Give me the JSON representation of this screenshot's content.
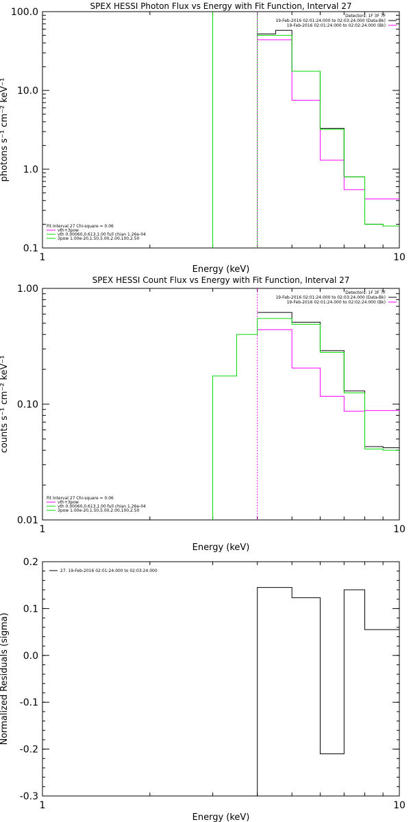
{
  "colors": {
    "background": "#ffffff",
    "axes": "#000000",
    "data": "#000000",
    "total": "#ff00ff",
    "thermal": "#00dd00",
    "time_marker": "#ff00ff"
  },
  "chart_data": [
    {
      "type": "line",
      "title": "SPEX HESSI Photon Flux vs Energy with Fit Function, Interval 27",
      "xlabel": "Energy (keV)",
      "ylabel": "photons s⁻¹ cm⁻² keV⁻¹",
      "xscale": "log",
      "yscale": "log",
      "xlim": [
        1,
        10
      ],
      "ylim": [
        0.1,
        100
      ],
      "xticks": [
        {
          "value": 1,
          "label": "1"
        },
        {
          "value": 10,
          "label": "10"
        }
      ],
      "yticks": [
        {
          "value": 0.1,
          "label": "0.1"
        },
        {
          "value": 1,
          "label": "1.0"
        },
        {
          "value": 10,
          "label": "10.0"
        },
        {
          "value": 100,
          "label": "100.0"
        }
      ],
      "grid": false,
      "legend_upper": [
        "Detectors: 1F 3F 7F",
        "19-Feb-2016 02:01:24.000 to 02:03:24.000 (Data-Bk)",
        "19-Feb-2016 02:01:24.000 to 02:02:24.000 (Bk)"
      ],
      "legend_lower": [
        "Fit Interval 27    Chi-square = 0.06",
        "vth+3pow",
        "vth 0.00060,0.613,1.00  full chian 1.26e-04",
        "3pow 1.00e-20,1.50,5.00,2.00,100,2.50"
      ],
      "vertical_lines": [
        {
          "x": 3.0,
          "color": "#00dd00",
          "dashed": false
        },
        {
          "x": 4.0,
          "color": "#00dd00",
          "dashed": false
        },
        {
          "x": 4.0,
          "color": "#ff00ff",
          "dashed": true
        }
      ],
      "series": [
        {
          "kind": "data",
          "color": "#000000",
          "edges": [
            4.0,
            4.5,
            5.0,
            5.5,
            6.0,
            6.5,
            7.0,
            7.5,
            8.0,
            8.5,
            9.0,
            9.5,
            10.0
          ],
          "values": [
            52,
            58,
            17.5,
            17.5,
            3.3,
            3.3,
            0.8,
            0.8,
            0.2,
            0.2,
            0.19,
            0.19
          ]
        },
        {
          "kind": "total",
          "color": "#ff00ff",
          "edges": [
            4.0,
            4.5,
            5.0,
            5.5,
            6.0,
            6.5,
            7.0,
            7.5,
            8.0,
            8.5,
            9.0,
            9.5,
            10.0
          ],
          "values": [
            44,
            44,
            7.5,
            7.5,
            1.3,
            1.3,
            0.55,
            0.55,
            0.42,
            0.42,
            0.42,
            0.42
          ]
        },
        {
          "kind": "thermal",
          "color": "#00dd00",
          "edges": [
            4.0,
            4.5,
            5.0,
            5.5,
            6.0,
            6.5,
            7.0,
            7.5,
            8.0,
            8.5,
            9.0,
            9.5,
            10.0
          ],
          "values": [
            50,
            50,
            17.5,
            17.5,
            3.2,
            3.2,
            0.8,
            0.8,
            0.2,
            0.2,
            0.19,
            0.19
          ]
        }
      ]
    },
    {
      "type": "line",
      "title": "SPEX HESSI Count Flux vs Energy with Fit Function, Interval 27",
      "xlabel": "Energy (keV)",
      "ylabel": "counts s⁻¹ cm⁻² keV⁻¹",
      "xscale": "log",
      "yscale": "log",
      "xlim": [
        1,
        10
      ],
      "ylim": [
        0.01,
        1
      ],
      "xticks": [
        {
          "value": 1,
          "label": "1"
        },
        {
          "value": 10,
          "label": "10"
        }
      ],
      "yticks": [
        {
          "value": 0.01,
          "label": "0.01"
        },
        {
          "value": 0.1,
          "label": "0.10"
        },
        {
          "value": 1,
          "label": "1.00"
        }
      ],
      "grid": false,
      "legend_upper": [
        "Detectors: 1F 3F 7F",
        "19-Feb-2016 02:01:24.000 to 02:03:24.000 (Data-Bk)",
        "19-Feb-2016 02:01:24.000 to 02:02:24.000 (Bk)"
      ],
      "legend_lower": [
        "Fit Interval 27    Chi-square = 0.06",
        "vth+3pow",
        "vth 0.00060,0.613,1.00  full chian 1.26e-04",
        "3pow 1.00e-20,1.50,5.00,2.00,100,2.50"
      ],
      "vertical_lines": [
        {
          "x": 4.0,
          "color": "#ff00ff",
          "dashed": true
        }
      ],
      "series": [
        {
          "kind": "data",
          "color": "#000000",
          "edges": [
            4.0,
            4.5,
            5.0,
            5.5,
            6.0,
            6.5,
            7.0,
            7.5,
            8.0,
            8.5,
            9.0,
            9.5,
            10.0
          ],
          "values": [
            0.62,
            0.62,
            0.51,
            0.51,
            0.29,
            0.29,
            0.13,
            0.13,
            0.043,
            0.043,
            0.042,
            0.042
          ]
        },
        {
          "kind": "total",
          "color": "#ff00ff",
          "edges": [
            4.0,
            4.5,
            5.0,
            5.5,
            6.0,
            6.5,
            7.0,
            7.5,
            8.0,
            8.5,
            9.0,
            9.5,
            10.0
          ],
          "values": [
            0.44,
            0.44,
            0.205,
            0.205,
            0.117,
            0.117,
            0.087,
            0.087,
            0.088,
            0.088,
            0.088,
            0.088
          ]
        },
        {
          "kind": "thermal",
          "color": "#00dd00",
          "edges": [
            3.0,
            3.5,
            4.0,
            4.5,
            5.0,
            5.5,
            6.0,
            6.5,
            7.0,
            7.5,
            8.0,
            8.5,
            9.0,
            9.5,
            10.0
          ],
          "values": [
            0.175,
            0.4,
            0.55,
            0.55,
            0.49,
            0.49,
            0.28,
            0.28,
            0.125,
            0.125,
            0.041,
            0.041,
            0.04,
            0.04
          ],
          "drop_to_axis": true
        }
      ]
    },
    {
      "type": "line",
      "title": "",
      "xlabel": "Energy (keV)",
      "ylabel": "Normalized Residuals (sigma)",
      "xscale": "log",
      "yscale": "linear",
      "xlim": [
        1,
        10
      ],
      "ylim": [
        -0.3,
        0.2
      ],
      "xticks": [
        {
          "value": 1,
          "label": "1"
        },
        {
          "value": 10,
          "label": "10"
        }
      ],
      "yticks": [
        {
          "value": 0.2,
          "label": "0.2"
        },
        {
          "value": 0.1,
          "label": "0.1"
        },
        {
          "value": 0,
          "label": "0.0"
        },
        {
          "value": -0.1,
          "label": "-0.1"
        },
        {
          "value": -0.2,
          "label": "-0.2"
        },
        {
          "value": -0.3,
          "label": "-0.3"
        }
      ],
      "grid": false,
      "legend_upper": [],
      "legend_lower": [],
      "legend_top_left": "27. 19-Feb-2016 02:01:24.000 to 02:03:24.000",
      "vertical_lines": [],
      "series": [
        {
          "kind": "residual",
          "color": "#000000",
          "edges": [
            4.0,
            4.5,
            5.0,
            5.5,
            6.0,
            6.5,
            7.0,
            7.5,
            8.0,
            8.5,
            9.0,
            9.5,
            10.0
          ],
          "values": [
            0.145,
            0.145,
            0.123,
            0.123,
            -0.21,
            -0.21,
            0.14,
            0.14,
            0.055,
            0.055,
            0.055,
            0.055
          ],
          "drop_to_axis": true
        }
      ]
    }
  ]
}
